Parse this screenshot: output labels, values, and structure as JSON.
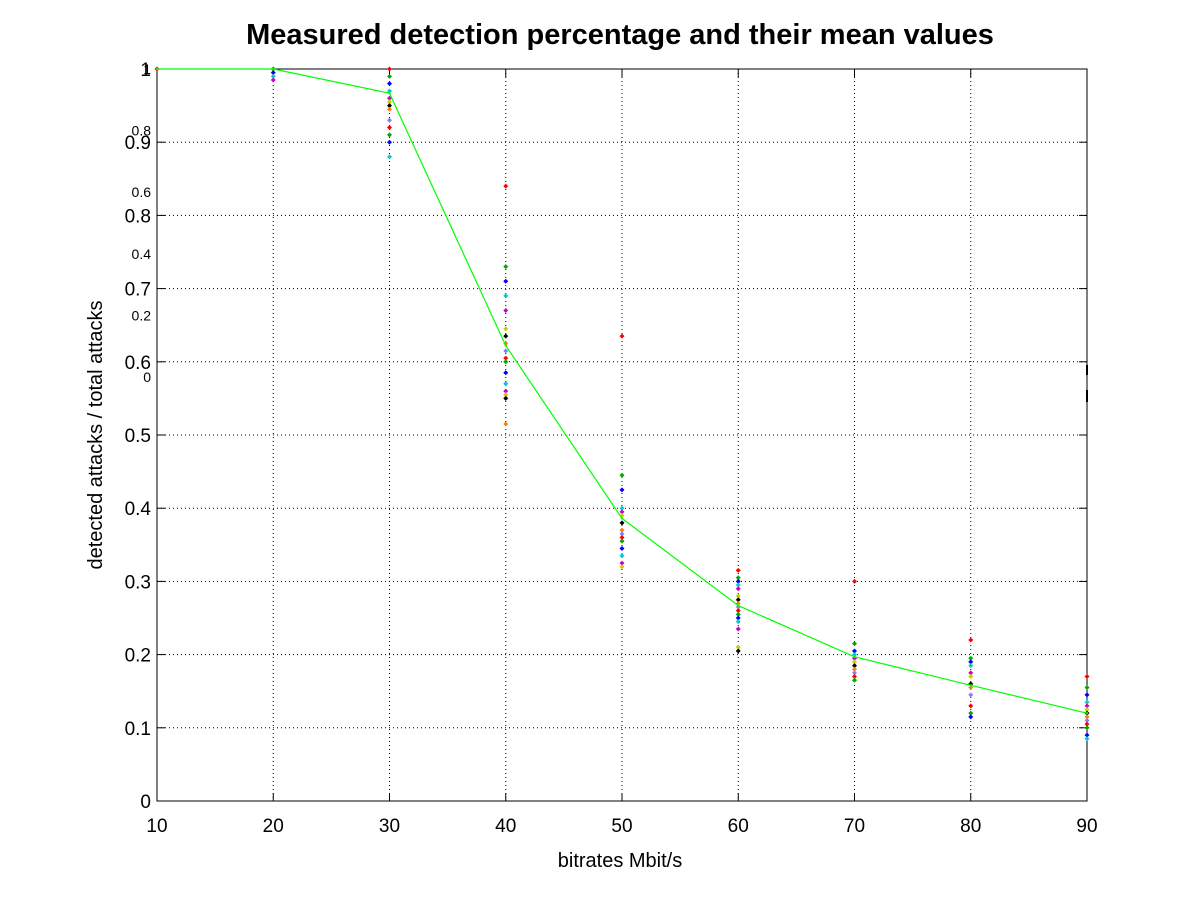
{
  "chart_data": {
    "type": "scatter",
    "title": "Measured detection percentage and their mean values",
    "xlabel": "bitrates Mbit/s",
    "ylabel": "detected attacks / total attacks",
    "xlim": [
      10,
      90
    ],
    "ylim": [
      0,
      1
    ],
    "xticks": [
      "10",
      "20",
      "30",
      "40",
      "50",
      "60",
      "70",
      "80",
      "90"
    ],
    "yticks": [
      "0",
      "0.1",
      "0.2",
      "0.3",
      "0.4",
      "0.5",
      "0.6",
      "0.7",
      "0.8",
      "0.9",
      "1"
    ],
    "overlay_ticks": [
      "0",
      "0.2",
      "0.4",
      "0.6",
      "0.8",
      "1"
    ],
    "grid": true,
    "legend": "none",
    "mean_series": {
      "color": "#00ff00",
      "x": [
        10,
        20,
        30,
        40,
        50,
        60,
        70,
        80,
        90
      ],
      "y": [
        1.0,
        1.0,
        0.967,
        0.622,
        0.386,
        0.267,
        0.197,
        0.158,
        0.12
      ]
    },
    "measurements": [
      {
        "x": 10,
        "y": [
          1.0
        ]
      },
      {
        "x": 20,
        "y": [
          1.0,
          1.0,
          0.995,
          0.99,
          0.985
        ]
      },
      {
        "x": 30,
        "y": [
          1.0,
          0.99,
          0.98,
          0.97,
          0.96,
          0.955,
          0.95,
          0.945,
          0.93,
          0.92,
          0.91,
          0.9,
          0.88
        ]
      },
      {
        "x": 40,
        "y": [
          0.84,
          0.73,
          0.71,
          0.69,
          0.67,
          0.645,
          0.635,
          0.625,
          0.615,
          0.605,
          0.6,
          0.585,
          0.57,
          0.56,
          0.555,
          0.55,
          0.515
        ]
      },
      {
        "x": 50,
        "y": [
          0.635,
          0.445,
          0.425,
          0.4,
          0.395,
          0.39,
          0.38,
          0.37,
          0.365,
          0.36,
          0.355,
          0.345,
          0.335,
          0.325,
          0.32
        ]
      },
      {
        "x": 60,
        "y": [
          0.315,
          0.305,
          0.3,
          0.295,
          0.29,
          0.28,
          0.275,
          0.27,
          0.265,
          0.26,
          0.255,
          0.25,
          0.245,
          0.235,
          0.21,
          0.205
        ]
      },
      {
        "x": 70,
        "y": [
          0.3,
          0.215,
          0.205,
          0.2,
          0.195,
          0.19,
          0.185,
          0.18,
          0.175,
          0.17,
          0.165
        ]
      },
      {
        "x": 80,
        "y": [
          0.22,
          0.195,
          0.19,
          0.185,
          0.175,
          0.17,
          0.16,
          0.155,
          0.145,
          0.13,
          0.12,
          0.115
        ]
      },
      {
        "x": 90,
        "y": [
          0.17,
          0.155,
          0.145,
          0.135,
          0.13,
          0.125,
          0.12,
          0.115,
          0.11,
          0.105,
          0.1,
          0.09,
          0.085
        ]
      }
    ],
    "marker_colors": [
      "#ff0000",
      "#00aa00",
      "#0000ff",
      "#00cccc",
      "#cc00cc",
      "#cccc00",
      "#000000",
      "#ff8000",
      "#8080ff"
    ]
  }
}
